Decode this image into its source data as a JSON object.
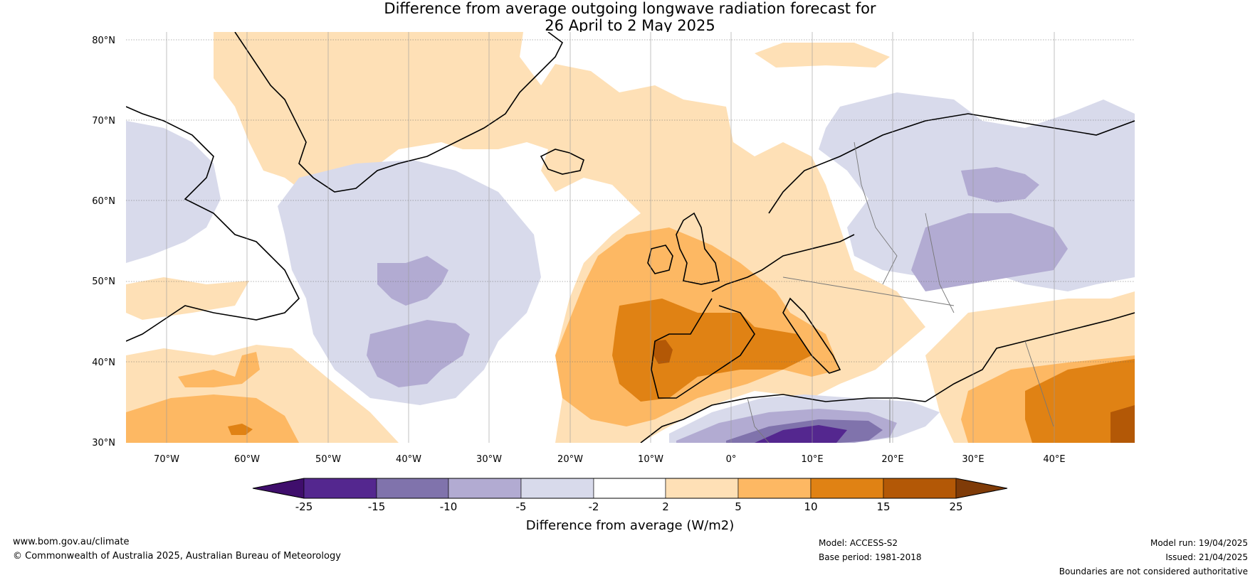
{
  "title_line1": "Difference from average outgoing longwave radiation forecast for",
  "title_line2": "26 April to 2 May 2025",
  "map": {
    "lon_range": [
      -75,
      50
    ],
    "lat_range": [
      30,
      81
    ],
    "lat_ticks": [
      "30°N",
      "40°N",
      "50°N",
      "60°N",
      "70°N",
      "80°N"
    ],
    "lon_ticks": [
      "70°W",
      "60°W",
      "50°W",
      "40°W",
      "30°W",
      "20°W",
      "10°W",
      "0°",
      "10°E",
      "20°E",
      "30°E",
      "40°E"
    ]
  },
  "colorbar": {
    "title": "Difference from average (W/m2)",
    "labels": [
      "-25",
      "-15",
      "-10",
      "-5",
      "-2",
      "2",
      "5",
      "10",
      "15",
      "25"
    ],
    "colors": [
      "#3f0e6c",
      "#54278f",
      "#8073ac",
      "#b2abd2",
      "#d8daeb",
      "#ffffff",
      "#fee0b6",
      "#fdb863",
      "#e08214",
      "#b35806",
      "#7f3b08"
    ]
  },
  "footer": {
    "website": "www.bom.gov.au/climate",
    "copyright": "© Commonwealth of Australia 2025, Australian Bureau of Meteorology",
    "model": "Model: ACCESS-S2",
    "base_period": "Base period: 1981-2018",
    "model_run": "Model run: 19/04/2025",
    "issued": "Issued: 21/04/2025",
    "disclaimer": "Boundaries are not considered authoritative"
  }
}
